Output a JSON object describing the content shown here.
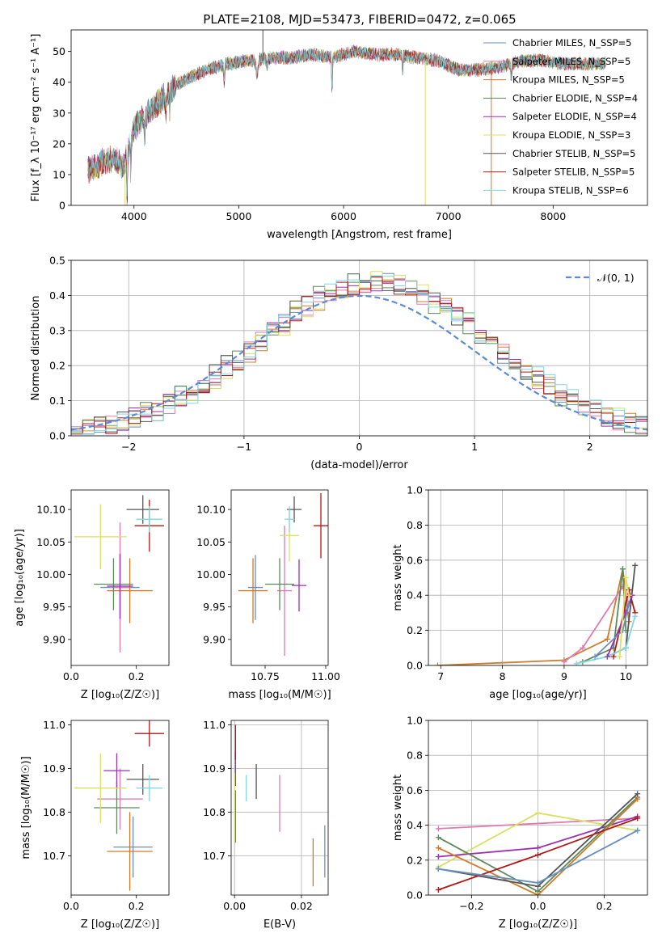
{
  "figure": {
    "title": "PLATE=2108, MJD=53473, FIBERID=0472, z=0.065"
  },
  "colors": {
    "miles_chabrier": "#6c8ebf",
    "miles_salpeter": "#e07ab0",
    "miles_kroupa": "#d07a2a",
    "elodie_chabrier": "#5a8a5a",
    "elodie_salpeter": "#9b30b0",
    "elodie_kroupa": "#d8e060",
    "stelib_chabrier": "#555555",
    "stelib_salpeter": "#b01818",
    "stelib_kroupa": "#80d8e0",
    "normal_curve": "#5b8bd6"
  },
  "chart_data": [
    {
      "id": "spectrum",
      "type": "line",
      "title": "PLATE=2108, MJD=53473, FIBERID=0472, z=0.065",
      "xlabel": "wavelength [Angstrom, rest frame]",
      "ylabel": "Flux [f_λ 10⁻¹⁷ erg cm⁻² s⁻¹ A⁻¹]",
      "xlim": [
        3400,
        8900
      ],
      "ylim": [
        0,
        57
      ],
      "xticks": [
        4000,
        5000,
        6000,
        7000,
        8000
      ],
      "yticks": [
        0,
        10,
        20,
        30,
        40,
        50
      ],
      "grid": false,
      "legend_position": "top-right",
      "series": [
        {
          "name": "Chabrier MILES, N_SSP=5",
          "color_key": "miles_chabrier"
        },
        {
          "name": "Salpeter MILES, N_SSP=5",
          "color_key": "miles_salpeter"
        },
        {
          "name": "Kroupa MILES, N_SSP=5",
          "color_key": "miles_kroupa"
        },
        {
          "name": "Chabrier ELODIE, N_SSP=4",
          "color_key": "elodie_chabrier"
        },
        {
          "name": "Salpeter ELODIE, N_SSP=4",
          "color_key": "elodie_salpeter"
        },
        {
          "name": "Kroupa ELODIE, N_SSP=3",
          "color_key": "elodie_kroupa"
        },
        {
          "name": "Chabrier STELIB, N_SSP=5",
          "color_key": "stelib_chabrier"
        },
        {
          "name": "Salpeter STELIB, N_SSP=5",
          "color_key": "stelib_salpeter"
        },
        {
          "name": "Kroupa STELIB, N_SSP=6",
          "color_key": "stelib_kroupa"
        }
      ],
      "continuum": {
        "x": [
          3550,
          3700,
          3800,
          3900,
          3950,
          4000,
          4100,
          4200,
          4300,
          4400,
          4500,
          4700,
          4900,
          5100,
          5300,
          5500,
          5700,
          5900,
          6100,
          6300,
          6500,
          6700,
          6900,
          7100,
          7300,
          7500,
          7700,
          7900,
          8100,
          8300,
          8500
        ],
        "y": [
          11,
          14,
          15,
          13,
          18,
          25,
          29,
          32,
          36,
          39,
          41,
          44,
          46,
          47,
          48,
          48,
          49,
          48,
          50,
          49,
          49,
          48,
          47,
          44,
          44,
          45,
          47,
          47,
          46,
          46,
          46
        ]
      },
      "spikes": [
        {
          "x": 5230,
          "y_from": 47,
          "y_to": 57,
          "color_key": "stelib_chabrier"
        },
        {
          "x": 3915,
          "y_from": 14,
          "y_to": 0,
          "color_key": "elodie_kroupa"
        },
        {
          "x": 6780,
          "y_from": 47,
          "y_to": 0,
          "color_key": "elodie_kroupa"
        },
        {
          "x": 7410,
          "y_from": 44,
          "y_to": 0,
          "color_key": "miles_kroupa"
        }
      ]
    },
    {
      "id": "residuals",
      "type": "histogram",
      "xlabel": "(data-model)/error",
      "ylabel": "Normed distribution",
      "xlim": [
        -2.5,
        2.5
      ],
      "ylim": [
        0,
        0.5
      ],
      "xticks": [
        -2,
        -1,
        0,
        1,
        2
      ],
      "yticks": [
        0.0,
        0.1,
        0.2,
        0.3,
        0.4,
        0.5
      ],
      "grid": true,
      "legend_position": "top-right",
      "bin_width": 0.1,
      "reference_curve": {
        "name": "𝒩(0, 1)",
        "color_key": "normal_curve",
        "mu": 0,
        "sigma": 1
      },
      "histogram_series_color_keys": [
        "miles_chabrier",
        "miles_salpeter",
        "miles_kroupa",
        "elodie_chabrier",
        "elodie_salpeter",
        "elodie_kroupa",
        "stelib_chabrier",
        "stelib_salpeter",
        "stelib_kroupa"
      ]
    },
    {
      "id": "age_vs_z",
      "type": "scatter",
      "xlabel": "Z [log₁₀(Z/Z☉)]",
      "ylabel": "age  [log₁₀(age/yr)]",
      "xlim": [
        0.0,
        0.3
      ],
      "ylim": [
        9.86,
        10.13
      ],
      "xticks": [
        0.0,
        0.2
      ],
      "yticks": [
        9.9,
        9.95,
        10.0,
        10.05,
        10.1
      ],
      "grid": false,
      "points": [
        {
          "color_key": "miles_chabrier",
          "x": 0.15,
          "y": 9.98,
          "xerr": 0.06,
          "yerr": 0.05
        },
        {
          "color_key": "miles_salpeter",
          "x": 0.15,
          "y": 9.98,
          "xerr": 0.03,
          "yerr": 0.1
        },
        {
          "color_key": "miles_kroupa",
          "x": 0.18,
          "y": 9.975,
          "xerr": 0.07,
          "yerr": 0.05
        },
        {
          "color_key": "elodie_chabrier",
          "x": 0.13,
          "y": 9.985,
          "xerr": 0.06,
          "yerr": 0.04
        },
        {
          "color_key": "elodie_salpeter",
          "x": 0.15,
          "y": 9.982,
          "xerr": 0.04,
          "yerr": 0.05
        },
        {
          "color_key": "elodie_kroupa",
          "x": 0.09,
          "y": 10.058,
          "xerr": 0.08,
          "yerr": 0.05
        },
        {
          "color_key": "stelib_chabrier",
          "x": 0.22,
          "y": 10.1,
          "xerr": 0.05,
          "yerr": 0.022
        },
        {
          "color_key": "stelib_salpeter",
          "x": 0.24,
          "y": 10.075,
          "xerr": 0.045,
          "yerr": 0.04
        },
        {
          "color_key": "stelib_kroupa",
          "x": 0.24,
          "y": 10.085,
          "xerr": 0.04,
          "yerr": 0.02
        }
      ]
    },
    {
      "id": "age_vs_mass",
      "type": "scatter",
      "xlabel": "mass [log₁₀(M/M☉)]",
      "ylabel": "",
      "xlim": [
        10.61,
        11.01
      ],
      "ylim": [
        9.86,
        10.13
      ],
      "xticks": [
        10.75,
        11.0
      ],
      "xticklabels": [
        "10.75",
        "11.00"
      ],
      "yticks": [
        9.9,
        9.95,
        10.0,
        10.05,
        10.1
      ],
      "grid": false,
      "points": [
        {
          "color_key": "miles_chabrier",
          "x": 10.71,
          "y": 9.98,
          "xerr": 0.03,
          "yerr": 0.05
        },
        {
          "color_key": "miles_salpeter",
          "x": 10.83,
          "y": 9.975,
          "xerr": 0.03,
          "yerr": 0.1
        },
        {
          "color_key": "miles_kroupa",
          "x": 10.7,
          "y": 9.975,
          "xerr": 0.06,
          "yerr": 0.05
        },
        {
          "color_key": "elodie_chabrier",
          "x": 10.81,
          "y": 9.985,
          "xerr": 0.06,
          "yerr": 0.04
        },
        {
          "color_key": "elodie_salpeter",
          "x": 10.89,
          "y": 9.983,
          "xerr": 0.03,
          "yerr": 0.04
        },
        {
          "color_key": "elodie_kroupa",
          "x": 10.85,
          "y": 10.06,
          "xerr": 0.04,
          "yerr": 0.04
        },
        {
          "color_key": "stelib_chabrier",
          "x": 10.87,
          "y": 10.1,
          "xerr": 0.03,
          "yerr": 0.02
        },
        {
          "color_key": "stelib_salpeter",
          "x": 10.98,
          "y": 10.075,
          "xerr": 0.03,
          "yerr": 0.05
        },
        {
          "color_key": "stelib_kroupa",
          "x": 10.85,
          "y": 10.085,
          "xerr": 0.02,
          "yerr": 0.02
        }
      ]
    },
    {
      "id": "mass_weight_vs_age",
      "type": "line",
      "xlabel": "age  [log₁₀(age/yr)]",
      "ylabel": "mass weight",
      "xlim": [
        6.8,
        10.35
      ],
      "ylim": [
        0,
        1.0
      ],
      "xticks": [
        7,
        8,
        9,
        10
      ],
      "yticks": [
        0.0,
        0.2,
        0.4,
        0.6,
        0.8,
        1.0
      ],
      "grid": true,
      "series": [
        {
          "color_key": "miles_kroupa",
          "x": [
            6.95,
            9.0,
            9.7,
            9.95,
            10.05
          ],
          "y": [
            0.0,
            0.03,
            0.15,
            0.55,
            0.25
          ]
        },
        {
          "color_key": "miles_salpeter",
          "x": [
            9.0,
            9.3,
            9.95,
            10.05
          ],
          "y": [
            0.02,
            0.1,
            0.45,
            0.35
          ]
        },
        {
          "color_key": "elodie_chabrier",
          "x": [
            9.3,
            9.8,
            9.95,
            10.0
          ],
          "y": [
            0.02,
            0.1,
            0.55,
            0.2
          ]
        },
        {
          "color_key": "stelib_chabrier",
          "x": [
            9.7,
            10.0,
            10.15
          ],
          "y": [
            0.05,
            0.1,
            0.57
          ]
        },
        {
          "color_key": "stelib_salpeter",
          "x": [
            9.8,
            10.05,
            10.15
          ],
          "y": [
            0.05,
            0.43,
            0.3
          ]
        },
        {
          "color_key": "stelib_kroupa",
          "x": [
            9.2,
            9.7,
            10.0,
            10.15
          ],
          "y": [
            0.01,
            0.05,
            0.1,
            0.28
          ]
        },
        {
          "color_key": "elodie_salpeter",
          "x": [
            9.7,
            10.0,
            10.1
          ],
          "y": [
            0.05,
            0.3,
            0.4
          ]
        },
        {
          "color_key": "miles_chabrier",
          "x": [
            9.5,
            9.95,
            10.05
          ],
          "y": [
            0.05,
            0.2,
            0.35
          ]
        },
        {
          "color_key": "elodie_kroupa",
          "x": [
            9.9,
            10.0,
            10.05
          ],
          "y": [
            0.05,
            0.5,
            0.4
          ]
        }
      ]
    },
    {
      "id": "mass_vs_z",
      "type": "scatter",
      "xlabel": "Z [log₁₀(Z/Z☉)]",
      "ylabel": "mass [log₁₀(M/M☉)]",
      "xlim": [
        0.0,
        0.3
      ],
      "ylim": [
        10.61,
        11.01
      ],
      "xticks": [
        0.0,
        0.2
      ],
      "yticks": [
        10.7,
        10.8,
        10.9,
        11.0
      ],
      "grid": false,
      "points": [
        {
          "color_key": "miles_chabrier",
          "x": 0.19,
          "y": 10.72,
          "xerr": 0.06,
          "yerr": 0.07
        },
        {
          "color_key": "miles_salpeter",
          "x": 0.15,
          "y": 10.83,
          "xerr": 0.07,
          "yerr": 0.07
        },
        {
          "color_key": "miles_kroupa",
          "x": 0.18,
          "y": 10.71,
          "xerr": 0.07,
          "yerr": 0.09
        },
        {
          "color_key": "elodie_chabrier",
          "x": 0.14,
          "y": 10.81,
          "xerr": 0.07,
          "yerr": 0.06
        },
        {
          "color_key": "elodie_salpeter",
          "x": 0.14,
          "y": 10.895,
          "xerr": 0.04,
          "yerr": 0.04
        },
        {
          "color_key": "elodie_kroupa",
          "x": 0.09,
          "y": 10.855,
          "xerr": 0.08,
          "yerr": 0.08
        },
        {
          "color_key": "stelib_chabrier",
          "x": 0.22,
          "y": 10.875,
          "xerr": 0.05,
          "yerr": 0.035
        },
        {
          "color_key": "stelib_salpeter",
          "x": 0.24,
          "y": 10.98,
          "xerr": 0.045,
          "yerr": 0.03
        },
        {
          "color_key": "stelib_kroupa",
          "x": 0.24,
          "y": 10.855,
          "xerr": 0.04,
          "yerr": 0.03
        }
      ]
    },
    {
      "id": "mass_vs_ebv",
      "type": "scatter",
      "xlabel": "E(B-V)",
      "ylabel": "",
      "xlim": [
        -0.001,
        0.028
      ],
      "ylim": [
        10.61,
        11.01
      ],
      "xticks": [
        0.0,
        0.02
      ],
      "xticklabels": [
        "0.00",
        "0.02"
      ],
      "yticks": [
        10.7,
        10.8,
        10.9,
        11.0
      ],
      "grid": true,
      "points": [
        {
          "color_key": "miles_chabrier",
          "x": 0.027,
          "y": 10.71,
          "xerr": 0,
          "yerr": 0.06
        },
        {
          "color_key": "miles_salpeter",
          "x": 0.0135,
          "y": 10.82,
          "xerr": 0,
          "yerr": 0.065
        },
        {
          "color_key": "miles_kroupa",
          "x": 0.0235,
          "y": 10.685,
          "xerr": 0,
          "yerr": 0.055
        },
        {
          "color_key": "elodie_chabrier",
          "x": 0.0003,
          "y": 10.79,
          "xerr": 0,
          "yerr": 0.06
        },
        {
          "color_key": "elodie_salpeter",
          "x": 0.0003,
          "y": 10.9,
          "xerr": 0,
          "yerr": 0.04
        },
        {
          "color_key": "elodie_kroupa",
          "x": 0.0,
          "y": 10.81,
          "xerr": 0,
          "yerr": 0.08
        },
        {
          "color_key": "stelib_chabrier",
          "x": 0.0065,
          "y": 10.87,
          "xerr": 0,
          "yerr": 0.04
        },
        {
          "color_key": "stelib_salpeter",
          "x": 0.0003,
          "y": 10.96,
          "xerr": 0,
          "yerr": 0.04
        },
        {
          "color_key": "stelib_kroupa",
          "x": 0.0035,
          "y": 10.855,
          "xerr": 0,
          "yerr": 0.03
        }
      ]
    },
    {
      "id": "mass_weight_vs_z",
      "type": "line",
      "xlabel": "Z [log₁₀(Z/Z☉)]",
      "ylabel": "mass weight",
      "xlim": [
        -0.33,
        0.33
      ],
      "ylim": [
        0,
        1.0
      ],
      "xticks": [
        -0.2,
        0.0,
        0.2
      ],
      "xticklabels": [
        "−0.2",
        "0.0",
        "0.2"
      ],
      "yticks": [
        0.0,
        0.2,
        0.4,
        0.6,
        0.8,
        1.0
      ],
      "grid": true,
      "series": [
        {
          "color_key": "miles_salpeter",
          "x": [
            -0.3,
            0.3
          ],
          "y": [
            0.38,
            0.44
          ]
        },
        {
          "color_key": "elodie_kroupa",
          "x": [
            -0.3,
            0.0,
            0.3
          ],
          "y": [
            0.16,
            0.47,
            0.37
          ]
        },
        {
          "color_key": "elodie_salpeter",
          "x": [
            -0.3,
            0.0,
            0.3
          ],
          "y": [
            0.22,
            0.27,
            0.45
          ]
        },
        {
          "color_key": "elodie_chabrier",
          "x": [
            -0.3,
            0.0,
            0.3
          ],
          "y": [
            0.33,
            0.02,
            0.56
          ]
        },
        {
          "color_key": "miles_kroupa",
          "x": [
            -0.3,
            0.0,
            0.3
          ],
          "y": [
            0.27,
            0.0,
            0.55
          ]
        },
        {
          "color_key": "stelib_chabrier",
          "x": [
            -0.3,
            0.0,
            0.3
          ],
          "y": [
            0.15,
            0.05,
            0.58
          ]
        },
        {
          "color_key": "stelib_salpeter",
          "x": [
            -0.3,
            0.0,
            0.3
          ],
          "y": [
            0.03,
            0.23,
            0.44
          ]
        },
        {
          "color_key": "stelib_kroupa",
          "x": [
            -0.3,
            0.0,
            0.3
          ],
          "y": [
            0.15,
            0.07,
            0.37
          ]
        },
        {
          "color_key": "miles_chabrier",
          "x": [
            -0.3,
            0.0,
            0.3
          ],
          "y": [
            0.15,
            0.07,
            0.37
          ]
        }
      ]
    }
  ]
}
